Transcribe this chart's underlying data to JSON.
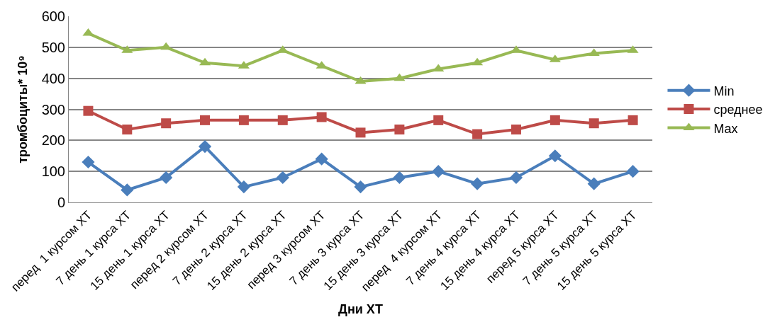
{
  "chart_data": {
    "type": "line",
    "xlabel": "Дни ХТ",
    "ylabel": "тромбоциты* 10⁹",
    "categories": [
      "перед  1 курсом ХТ",
      "7 день 1 курса ХТ",
      "15 день 1 курса ХТ",
      "перед 2 курсом ХТ",
      "7 день 2 курса ХТ",
      "15 день 2 курса ХТ",
      "перед 3 курсом ХТ",
      "7 день 3 курса ХТ",
      "15 день 3 курса ХТ",
      "перед  4 курсом ХТ",
      "7 день 4 курса ХТ",
      "15 день 4 курса ХТ",
      "перед 5 курса ХТ",
      "7 день 5 курса ХТ",
      "15 день 5 курса ХТ"
    ],
    "series": [
      {
        "name": "Min",
        "color": "#4a7ebb",
        "marker": "diamond",
        "values": [
          130,
          40,
          80,
          180,
          50,
          80,
          140,
          50,
          80,
          100,
          60,
          80,
          150,
          60,
          100
        ]
      },
      {
        "name": "среднее",
        "color": "#be4b48",
        "marker": "square",
        "values": [
          295,
          235,
          255,
          265,
          265,
          265,
          275,
          225,
          235,
          265,
          220,
          235,
          265,
          255,
          265
        ]
      },
      {
        "name": "Max",
        "color": "#98b954",
        "marker": "triangle",
        "values": [
          545,
          490,
          500,
          450,
          440,
          490,
          440,
          390,
          400,
          430,
          450,
          490,
          460,
          480,
          490
        ]
      }
    ],
    "ylim": [
      0,
      600
    ],
    "yticks": [
      0,
      100,
      200,
      300,
      400,
      500,
      600
    ],
    "grid": "y",
    "legend": "right"
  }
}
